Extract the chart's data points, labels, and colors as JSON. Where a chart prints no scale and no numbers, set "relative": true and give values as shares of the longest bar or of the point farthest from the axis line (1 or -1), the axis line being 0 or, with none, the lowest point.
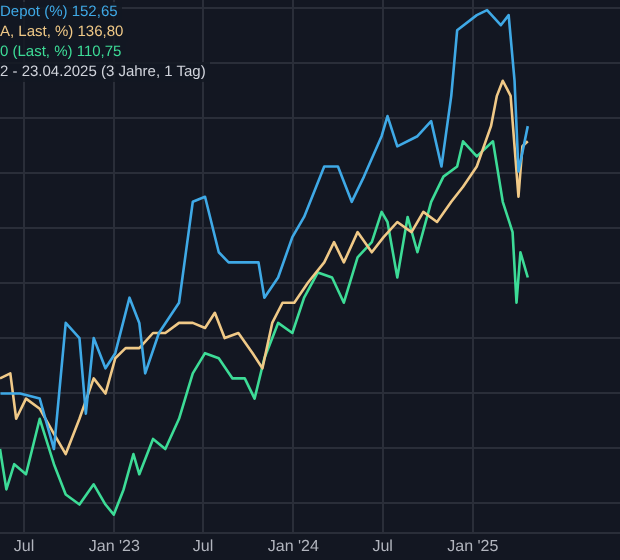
{
  "chart_data": {
    "type": "line",
    "relative": true,
    "grid": true,
    "legend": "top left",
    "marker": "none",
    "line_style": "solid",
    "annotations": [
      "2 - 23.04.2025 (3 Jahre, 1 Tag)"
    ],
    "xlim": [
      "2022-05-13",
      "2025-10-28"
    ],
    "xticks": [
      {
        "value": "2022-07-01",
        "label": "Jul"
      },
      {
        "value": "2023-01-01",
        "label": "Jan '23"
      },
      {
        "value": "2023-07-01",
        "label": "Jul"
      },
      {
        "value": "2024-01-01",
        "label": "Jan '24"
      },
      {
        "value": "2024-07-01",
        "label": "Jul"
      },
      {
        "value": "2025-01-01",
        "label": "Jan '25"
      }
    ],
    "series": [
      {
        "name": "Depot (%) 152,65",
        "color": "#3fa9e6",
        "x": [
          "2022-05-14",
          "2022-06-23",
          "2022-08-02",
          "2022-08-31",
          "2022-09-24",
          "2022-10-22",
          "2022-11-04",
          "2022-11-20",
          "2022-12-14",
          "2023-01-03",
          "2023-02-01",
          "2023-02-21",
          "2023-03-05",
          "2023-04-02",
          "2023-05-13",
          "2023-06-10",
          "2023-07-05",
          "2023-08-02",
          "2023-08-22",
          "2023-09-24",
          "2023-10-22",
          "2023-11-03",
          "2023-12-01",
          "2023-12-30",
          "2024-01-23",
          "2024-03-04",
          "2024-04-01",
          "2024-04-29",
          "2024-05-24",
          "2024-06-29",
          "2024-07-11",
          "2024-07-31",
          "2024-09-10",
          "2024-10-08",
          "2024-10-29",
          "2024-11-18",
          "2024-11-30",
          "2025-01-09",
          "2025-01-30",
          "2025-02-27",
          "2025-03-15",
          "2025-03-27",
          "2025-04-04",
          "2025-04-23"
        ],
        "values": [
          0.24,
          0.24,
          0.23,
          0.13,
          0.38,
          0.35,
          0.2,
          0.35,
          0.29,
          0.32,
          0.43,
          0.38,
          0.28,
          0.36,
          0.42,
          0.62,
          0.63,
          0.52,
          0.5,
          0.5,
          0.5,
          0.43,
          0.47,
          0.55,
          0.59,
          0.69,
          0.69,
          0.62,
          0.67,
          0.75,
          0.79,
          0.73,
          0.75,
          0.78,
          0.69,
          0.83,
          0.96,
          0.99,
          1,
          0.97,
          0.99,
          0.86,
          0.68,
          0.77
        ]
      },
      {
        "name": "A, Last, %) 136,80",
        "color": "#f0c987",
        "x": [
          "2022-05-13",
          "2022-06-03",
          "2022-06-15",
          "2022-07-05",
          "2022-08-02",
          "2022-08-31",
          "2022-09-24",
          "2022-10-22",
          "2022-11-20",
          "2022-12-14",
          "2023-01-03",
          "2023-01-24",
          "2023-02-21",
          "2023-03-21",
          "2023-04-15",
          "2023-05-13",
          "2023-06-10",
          "2023-07-05",
          "2023-07-25",
          "2023-08-14",
          "2023-09-11",
          "2023-10-10",
          "2023-10-30",
          "2023-11-19",
          "2023-12-10",
          "2024-01-03",
          "2024-01-31",
          "2024-03-04",
          "2024-03-24",
          "2024-04-13",
          "2024-05-11",
          "2024-06-09",
          "2024-07-03",
          "2024-07-31",
          "2024-08-29",
          "2024-09-22",
          "2024-10-20",
          "2024-11-18",
          "2024-12-12",
          "2025-01-09",
          "2025-02-07",
          "2025-02-19",
          "2025-03-03",
          "2025-03-19",
          "2025-03-27",
          "2025-04-04",
          "2025-04-12",
          "2025-04-23"
        ],
        "values": [
          0.27,
          0.28,
          0.19,
          0.23,
          0.21,
          0.16,
          0.12,
          0.19,
          0.27,
          0.24,
          0.31,
          0.33,
          0.33,
          0.36,
          0.36,
          0.38,
          0.38,
          0.37,
          0.4,
          0.35,
          0.36,
          0.32,
          0.29,
          0.38,
          0.42,
          0.42,
          0.46,
          0.5,
          0.54,
          0.5,
          0.56,
          0.52,
          0.55,
          0.58,
          0.56,
          0.6,
          0.58,
          0.62,
          0.65,
          0.69,
          0.77,
          0.83,
          0.86,
          0.83,
          0.73,
          0.63,
          0.73,
          0.74
        ]
      },
      {
        "name": "0 (Last, %) 110,75",
        "color": "#3ddc97",
        "x": [
          "2022-05-13",
          "2022-05-26",
          "2022-06-11",
          "2022-07-05",
          "2022-08-02",
          "2022-08-31",
          "2022-09-24",
          "2022-10-22",
          "2022-11-20",
          "2022-12-14",
          "2022-12-31",
          "2023-01-20",
          "2023-02-09",
          "2023-02-21",
          "2023-03-21",
          "2023-04-15",
          "2023-05-13",
          "2023-06-10",
          "2023-07-05",
          "2023-08-02",
          "2023-08-30",
          "2023-09-24",
          "2023-10-14",
          "2023-11-03",
          "2023-12-01",
          "2023-12-30",
          "2024-01-23",
          "2024-02-20",
          "2024-03-20",
          "2024-04-13",
          "2024-05-11",
          "2024-06-09",
          "2024-06-29",
          "2024-07-11",
          "2024-07-31",
          "2024-08-21",
          "2024-09-10",
          "2024-10-08",
          "2024-11-02",
          "2024-11-30",
          "2024-12-12",
          "2025-01-09",
          "2025-02-11",
          "2025-03-03",
          "2025-03-23",
          "2025-03-31",
          "2025-04-08",
          "2025-04-23"
        ],
        "values": [
          0.13,
          0.05,
          0.1,
          0.08,
          0.19,
          0.1,
          0.04,
          0.02,
          0.06,
          0.02,
          0,
          0.05,
          0.12,
          0.08,
          0.15,
          0.13,
          0.19,
          0.28,
          0.32,
          0.31,
          0.27,
          0.27,
          0.23,
          0.31,
          0.38,
          0.36,
          0.43,
          0.48,
          0.47,
          0.42,
          0.51,
          0.54,
          0.6,
          0.58,
          0.47,
          0.59,
          0.52,
          0.62,
          0.67,
          0.69,
          0.74,
          0.71,
          0.74,
          0.62,
          0.56,
          0.42,
          0.52,
          0.47
        ]
      }
    ]
  }
}
